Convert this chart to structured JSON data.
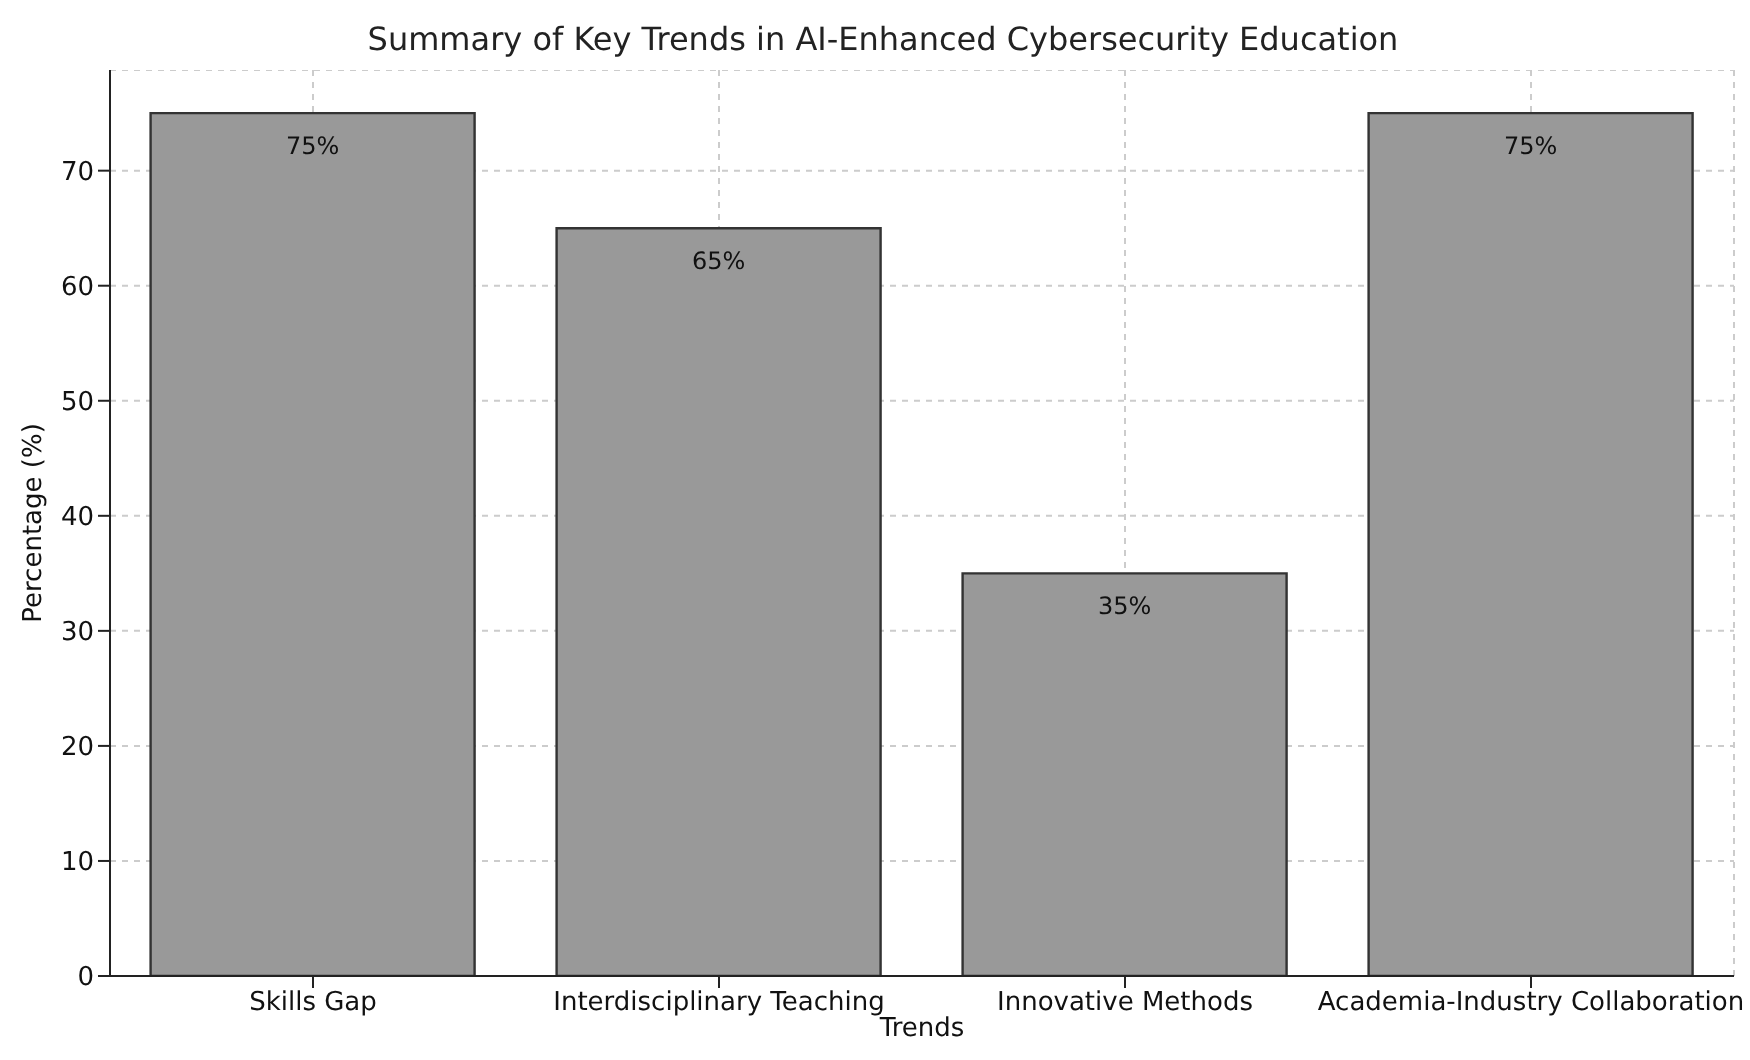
{
  "chart_data": {
    "type": "bar",
    "title": "Summary of Key Trends in AI-Enhanced Cybersecurity Education",
    "xlabel": "Trends",
    "ylabel": "Percentage (%)",
    "categories": [
      "Skills Gap",
      "Interdisciplinary Teaching",
      "Innovative Methods",
      "Academia-Industry Collaboration"
    ],
    "values": [
      75,
      65,
      35,
      75
    ],
    "value_labels": [
      "75%",
      "65%",
      "35%",
      "75%"
    ],
    "color": "#999999",
    "ylim": [
      0,
      78.75
    ],
    "yticks": [
      0,
      10,
      20,
      30,
      40,
      50,
      60,
      70
    ],
    "grid": true
  }
}
